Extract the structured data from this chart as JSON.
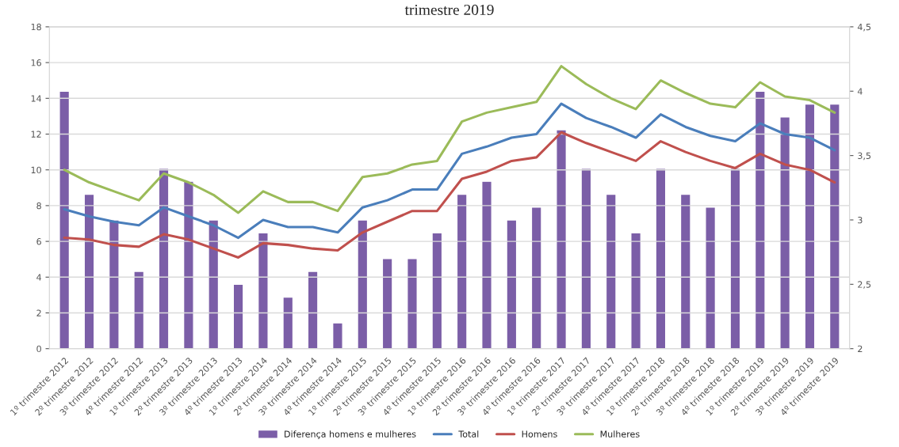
{
  "chart_data": {
    "type": "line",
    "title": "trimestre 2019",
    "categories": [
      "1º trimestre 2012",
      "2º trimestre 2012",
      "3º trimestre 2012",
      "4º trimestre 2012",
      "1º trimestre 2013",
      "2º trimestre 2013",
      "3º trimestre 2013",
      "4º trimestre 2013",
      "1º trimestre 2014",
      "2º trimestre 2014",
      "3º trimestre 2014",
      "4º trimestre 2014",
      "1º trimestre 2015",
      "2º trimestre 2015",
      "3º trimestre 2015",
      "4º trimestre 2015",
      "1º trimestre 2016",
      "2º trimestre 2016",
      "3º trimestre 2016",
      "4º trimestre 2016",
      "1º trimestre 2017",
      "2º trimestre 2017",
      "3º trimestre 2017",
      "4º trimestre 2017",
      "1º trimestre 2018",
      "2º trimestre 2018",
      "3º trimestre 2018",
      "4º trimestre 2018",
      "1º trimestre 2019",
      "2º trimestre 2019",
      "3º trimestre 2019",
      "4º trimestre 2019"
    ],
    "series": [
      {
        "name": "Diferença homens e mulheres",
        "type": "bar",
        "axis": "y2",
        "color": "#7b5ea7",
        "values": [
          4.0,
          3.2,
          3.0,
          2.6,
          3.4,
          3.3,
          3.0,
          2.5,
          2.9,
          2.4,
          2.6,
          2.2,
          3.0,
          2.7,
          2.7,
          2.9,
          3.2,
          3.3,
          3.0,
          3.1,
          3.7,
          3.4,
          3.2,
          2.9,
          3.4,
          3.2,
          3.1,
          3.4,
          4.0,
          3.8,
          3.9,
          3.9
        ]
      },
      {
        "name": "Total",
        "color": "#4a7ebb",
        "values": [
          7.8,
          7.4,
          7.1,
          6.9,
          7.9,
          7.4,
          6.9,
          6.2,
          7.2,
          6.8,
          6.8,
          6.5,
          7.9,
          8.3,
          8.9,
          8.9,
          10.9,
          11.3,
          11.8,
          12.0,
          13.7,
          12.9,
          12.4,
          11.8,
          13.1,
          12.4,
          11.9,
          11.6,
          12.6,
          12.0,
          11.8,
          11.1
        ]
      },
      {
        "name": "Homens",
        "color": "#c0504d",
        "values": [
          6.2,
          6.1,
          5.8,
          5.7,
          6.4,
          6.1,
          5.6,
          5.1,
          5.9,
          5.8,
          5.6,
          5.5,
          6.5,
          7.1,
          7.7,
          7.7,
          9.5,
          9.9,
          10.5,
          10.7,
          12.1,
          11.5,
          11.0,
          10.5,
          11.6,
          11.0,
          10.5,
          10.1,
          10.9,
          10.3,
          10.0,
          9.3
        ]
      },
      {
        "name": "Mulheres",
        "color": "#9bbb59",
        "values": [
          10.0,
          9.3,
          8.8,
          8.3,
          9.8,
          9.3,
          8.6,
          7.6,
          8.8,
          8.2,
          8.2,
          7.7,
          9.6,
          9.8,
          10.3,
          10.5,
          12.7,
          13.2,
          13.5,
          13.8,
          15.8,
          14.8,
          14.0,
          13.4,
          15.0,
          14.3,
          13.7,
          13.5,
          14.9,
          14.1,
          13.9,
          13.2
        ]
      }
    ],
    "ylim": [
      0,
      18
    ],
    "yticks": [
      0,
      2,
      4,
      6,
      8,
      10,
      12,
      14,
      16,
      18
    ],
    "y2lim": [
      2,
      4.5
    ],
    "y2ticks": [
      2,
      {
        "value": 2.5,
        "label": "2,5"
      },
      3,
      {
        "value": 3.5,
        "label": "3,5"
      },
      4,
      {
        "value": 4.5,
        "label": "4,5"
      }
    ],
    "grid": "y",
    "legend": "bottom",
    "marker": "none",
    "line_style": "solid"
  }
}
